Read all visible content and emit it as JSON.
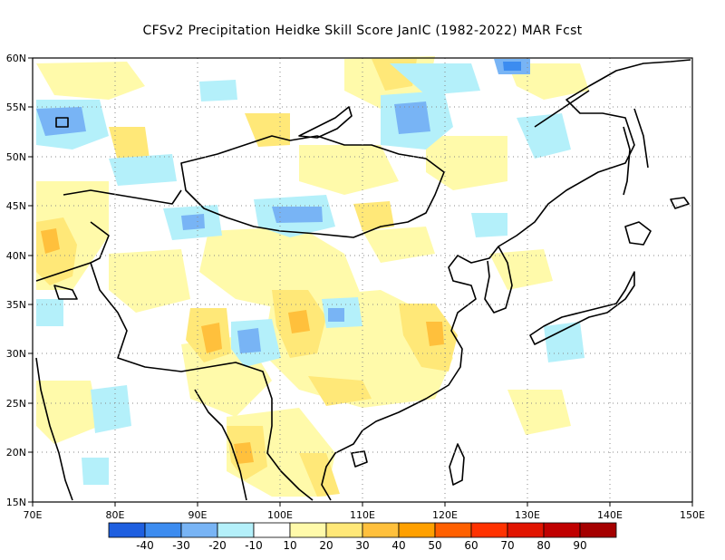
{
  "title": "CFSv2  Precipitation Heidke Skill Score JanIC (1982-2022) MAR Fcst",
  "map": {
    "lon_range": [
      70,
      150
    ],
    "lat_range": [
      15,
      60
    ],
    "lon_ticks": [
      "70E",
      "80E",
      "90E",
      "100E",
      "110E",
      "120E",
      "130E",
      "140E",
      "150E"
    ],
    "lat_ticks": [
      "15N",
      "20N",
      "25N",
      "30N",
      "35N",
      "40N",
      "45N",
      "50N",
      "55N",
      "60N"
    ],
    "grid": "dotted"
  },
  "colorbar": {
    "colors": [
      "#1e5fe0",
      "#3c8cf0",
      "#78b4f5",
      "#b4f0fa",
      "#ffffff",
      "#fffaaa",
      "#ffe878",
      "#ffc03c",
      "#ffa000",
      "#ff6000",
      "#ff3200",
      "#e11400",
      "#c00000",
      "#a50000"
    ],
    "labels": [
      "-40",
      "-30",
      "-20",
      "-10",
      "10",
      "20",
      "30",
      "40",
      "50",
      "60",
      "70",
      "80",
      "90"
    ]
  }
}
